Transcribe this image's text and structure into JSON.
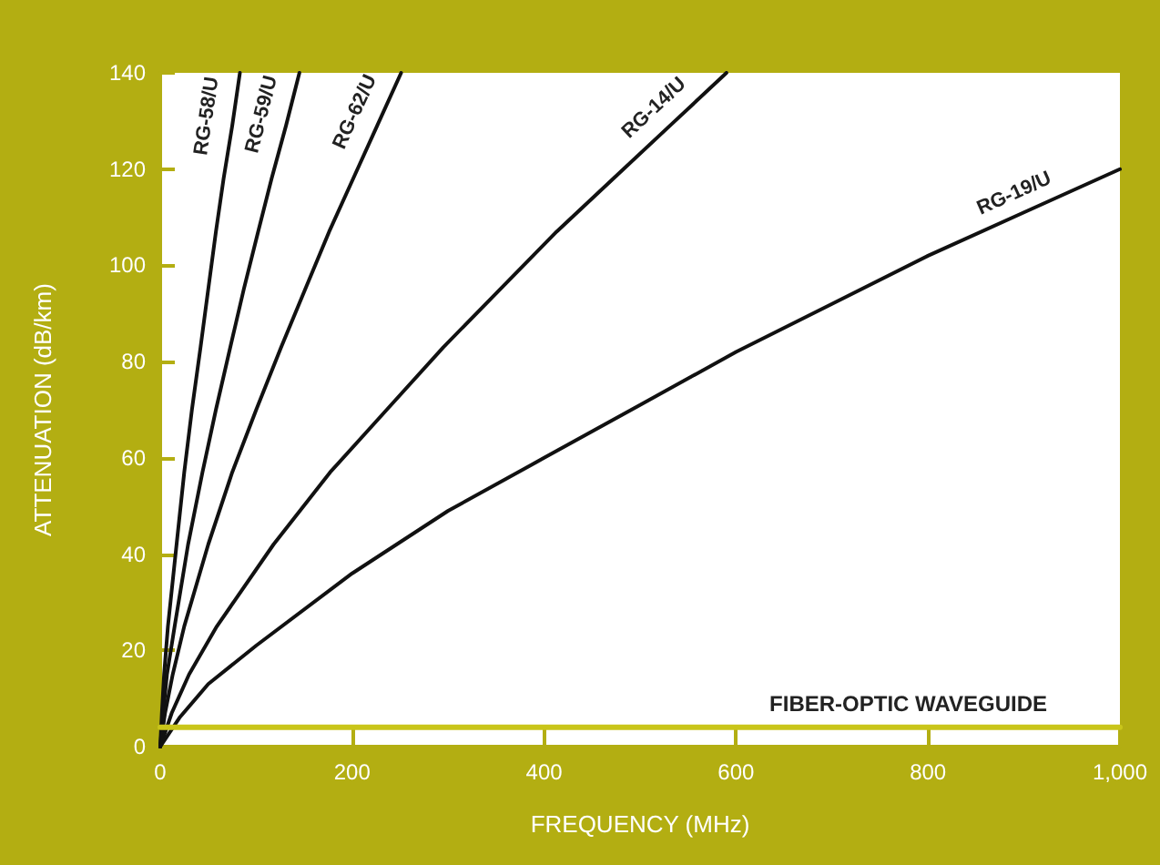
{
  "chart_data": {
    "type": "line",
    "xlabel": "FREQUENCY (MHz)",
    "ylabel": "ATTENUATION (dB/km)",
    "xlim": [
      0,
      1000
    ],
    "xticks": [
      0,
      200,
      400,
      600,
      800,
      {
        "value": 1000,
        "label": "1,000"
      }
    ],
    "ylim": [
      0,
      140
    ],
    "yticks": [
      0,
      20,
      40,
      60,
      80,
      100,
      120,
      140
    ],
    "grid": false,
    "legend": false,
    "marker": "none",
    "line_style": "solid",
    "series": [
      {
        "name": "RG-58/U",
        "color": "#111111",
        "x": [
          0,
          1.7,
          4,
          8,
          17,
          25,
          33,
          42,
          50,
          58,
          66,
          75,
          83
        ],
        "values": [
          0,
          7,
          15,
          25,
          42,
          57,
          70,
          83,
          95,
          107,
          118,
          129,
          140
        ]
      },
      {
        "name": "RG-59/U",
        "color": "#111111",
        "x": [
          0,
          3,
          7,
          15,
          29,
          44,
          58,
          73,
          87,
          102,
          116,
          131,
          145
        ],
        "values": [
          0,
          7,
          15,
          25,
          42,
          57,
          70,
          83,
          95,
          107,
          118,
          129,
          140
        ]
      },
      {
        "name": "RG-62/U",
        "color": "#111111",
        "x": [
          0,
          5,
          13,
          25,
          50,
          75,
          100,
          126,
          151,
          176,
          201,
          226,
          251
        ],
        "values": [
          0,
          7,
          15,
          25,
          42,
          57,
          70,
          83,
          95,
          107,
          118,
          129,
          140
        ]
      },
      {
        "name": "RG-14/U",
        "color": "#111111",
        "x": [
          0,
          12,
          30,
          59,
          118,
          177,
          236,
          295,
          354,
          413,
          472,
          531,
          590
        ],
        "values": [
          0,
          7,
          15,
          25,
          42,
          57,
          70,
          83,
          95,
          107,
          118,
          129,
          140
        ]
      },
      {
        "name": "RG-19/U",
        "color": "#111111",
        "x": [
          0,
          20,
          50,
          100,
          200,
          300,
          400,
          500,
          600,
          700,
          800,
          900,
          1000
        ],
        "values": [
          0,
          6,
          13,
          21,
          36,
          49,
          60,
          71,
          82,
          92,
          102,
          111,
          120
        ]
      },
      {
        "name": "FIBER-OPTIC WAVEGUIDE",
        "color": "#c9c51a",
        "x": [
          0,
          1000
        ],
        "values": [
          4,
          4
        ]
      }
    ]
  }
}
